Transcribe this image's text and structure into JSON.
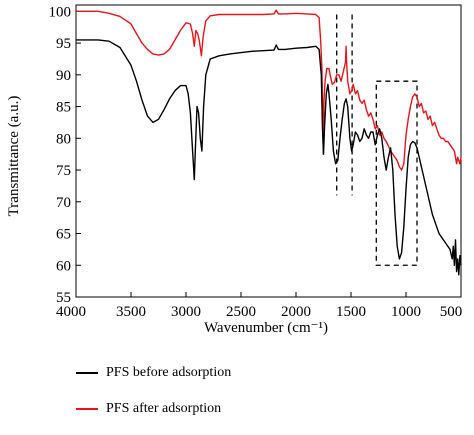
{
  "chart_data": {
    "type": "line",
    "title": "",
    "xlabel": "Wavenumber (cm⁻¹)",
    "ylabel": "Transmittance (a.u.)",
    "xlim": [
      4000,
      500
    ],
    "ylim": [
      55,
      101
    ],
    "x_ticks": [
      "4000",
      "3500",
      "3000",
      "2500",
      "2000",
      "1500",
      "1000",
      "500"
    ],
    "y_ticks": [
      "55",
      "60",
      "65",
      "70",
      "75",
      "80",
      "85",
      "90",
      "95",
      "100"
    ],
    "grid": false,
    "legend_position": "bottom",
    "series": [
      {
        "name": "PFS before adsorption",
        "color": "#000000",
        "points": [
          [
            4000,
            95.5
          ],
          [
            3800,
            95.5
          ],
          [
            3700,
            95.3
          ],
          [
            3600,
            94.3
          ],
          [
            3500,
            91.5
          ],
          [
            3450,
            89
          ],
          [
            3400,
            86
          ],
          [
            3350,
            83.5
          ],
          [
            3300,
            82.5
          ],
          [
            3250,
            83
          ],
          [
            3200,
            84.5
          ],
          [
            3150,
            86.2
          ],
          [
            3100,
            87.5
          ],
          [
            3050,
            88.3
          ],
          [
            3000,
            88.3
          ],
          [
            2980,
            87
          ],
          [
            2960,
            84
          ],
          [
            2940,
            78
          ],
          [
            2925,
            73.5
          ],
          [
            2915,
            78
          ],
          [
            2900,
            85
          ],
          [
            2885,
            84
          ],
          [
            2870,
            80
          ],
          [
            2855,
            78
          ],
          [
            2840,
            85
          ],
          [
            2820,
            90
          ],
          [
            2780,
            92.5
          ],
          [
            2700,
            93
          ],
          [
            2600,
            93.3
          ],
          [
            2500,
            93.5
          ],
          [
            2400,
            93.7
          ],
          [
            2300,
            93.8
          ],
          [
            2200,
            93.9
          ],
          [
            2180,
            94.7
          ],
          [
            2160,
            94
          ],
          [
            2100,
            94
          ],
          [
            2000,
            94.2
          ],
          [
            1900,
            94.3
          ],
          [
            1820,
            94.5
          ],
          [
            1790,
            94
          ],
          [
            1770,
            90
          ],
          [
            1760,
            82
          ],
          [
            1750,
            77.5
          ],
          [
            1740,
            82
          ],
          [
            1725,
            87
          ],
          [
            1710,
            88.5
          ],
          [
            1700,
            87
          ],
          [
            1680,
            83
          ],
          [
            1660,
            78
          ],
          [
            1640,
            76
          ],
          [
            1620,
            76.5
          ],
          [
            1600,
            80
          ],
          [
            1580,
            83
          ],
          [
            1560,
            85.5
          ],
          [
            1545,
            86.2
          ],
          [
            1530,
            85
          ],
          [
            1510,
            80
          ],
          [
            1495,
            78
          ],
          [
            1480,
            79
          ],
          [
            1460,
            81
          ],
          [
            1440,
            80.5
          ],
          [
            1420,
            79.5
          ],
          [
            1400,
            80
          ],
          [
            1380,
            81.5
          ],
          [
            1360,
            80.5
          ],
          [
            1340,
            80
          ],
          [
            1320,
            81
          ],
          [
            1300,
            81
          ],
          [
            1280,
            79
          ],
          [
            1260,
            80.5
          ],
          [
            1240,
            81.5
          ],
          [
            1220,
            80
          ],
          [
            1200,
            77
          ],
          [
            1180,
            75
          ],
          [
            1160,
            77
          ],
          [
            1140,
            78.5
          ],
          [
            1120,
            75
          ],
          [
            1100,
            68
          ],
          [
            1080,
            63
          ],
          [
            1060,
            61
          ],
          [
            1040,
            62
          ],
          [
            1020,
            66
          ],
          [
            1000,
            72
          ],
          [
            980,
            77
          ],
          [
            960,
            79
          ],
          [
            940,
            79.5
          ],
          [
            920,
            79.3
          ],
          [
            900,
            78.5
          ],
          [
            880,
            77
          ],
          [
            860,
            75.5
          ],
          [
            840,
            74
          ],
          [
            820,
            72.5
          ],
          [
            800,
            71
          ],
          [
            780,
            69.5
          ],
          [
            760,
            68
          ],
          [
            740,
            67
          ],
          [
            720,
            66
          ],
          [
            700,
            65
          ],
          [
            680,
            64.5
          ],
          [
            660,
            64
          ],
          [
            640,
            63.5
          ],
          [
            620,
            63
          ],
          [
            600,
            62.5
          ],
          [
            580,
            61
          ],
          [
            570,
            63
          ],
          [
            560,
            60
          ],
          [
            550,
            64
          ],
          [
            540,
            59
          ],
          [
            530,
            61
          ],
          [
            520,
            58.5
          ],
          [
            510,
            61.5
          ],
          [
            500,
            60
          ]
        ]
      },
      {
        "name": "PFS after adsorption",
        "color": "#e8141a",
        "points": [
          [
            4000,
            100
          ],
          [
            3800,
            100
          ],
          [
            3700,
            99.7
          ],
          [
            3600,
            99.2
          ],
          [
            3500,
            98
          ],
          [
            3450,
            96.5
          ],
          [
            3400,
            95
          ],
          [
            3350,
            94
          ],
          [
            3300,
            93.3
          ],
          [
            3250,
            93.1
          ],
          [
            3200,
            93.3
          ],
          [
            3150,
            94
          ],
          [
            3100,
            95.5
          ],
          [
            3050,
            97
          ],
          [
            3000,
            98.2
          ],
          [
            2960,
            98
          ],
          [
            2940,
            96.5
          ],
          [
            2925,
            94.5
          ],
          [
            2910,
            97
          ],
          [
            2895,
            96.5
          ],
          [
            2880,
            95.5
          ],
          [
            2860,
            93
          ],
          [
            2845,
            96
          ],
          [
            2820,
            98.5
          ],
          [
            2780,
            99.3
          ],
          [
            2700,
            99.5
          ],
          [
            2600,
            99.5
          ],
          [
            2500,
            99.5
          ],
          [
            2400,
            99.5
          ],
          [
            2300,
            99.5
          ],
          [
            2200,
            99.6
          ],
          [
            2180,
            100.2
          ],
          [
            2160,
            99.6
          ],
          [
            2100,
            99.6
          ],
          [
            2000,
            99.7
          ],
          [
            1900,
            99.6
          ],
          [
            1820,
            99.5
          ],
          [
            1790,
            99
          ],
          [
            1775,
            95
          ],
          [
            1765,
            91
          ],
          [
            1758,
            85
          ],
          [
            1752,
            77.5
          ],
          [
            1745,
            86
          ],
          [
            1735,
            89
          ],
          [
            1720,
            91
          ],
          [
            1700,
            91
          ],
          [
            1690,
            90
          ],
          [
            1670,
            88.5
          ],
          [
            1650,
            88.8
          ],
          [
            1630,
            90
          ],
          [
            1610,
            90
          ],
          [
            1590,
            89
          ],
          [
            1570,
            90.5
          ],
          [
            1550,
            92
          ],
          [
            1545,
            94.5
          ],
          [
            1540,
            92
          ],
          [
            1530,
            89
          ],
          [
            1510,
            87
          ],
          [
            1495,
            87.5
          ],
          [
            1480,
            88.5
          ],
          [
            1460,
            87
          ],
          [
            1440,
            87.5
          ],
          [
            1420,
            86
          ],
          [
            1400,
            85.5
          ],
          [
            1380,
            86
          ],
          [
            1360,
            84.5
          ],
          [
            1340,
            83.5
          ],
          [
            1320,
            84
          ],
          [
            1300,
            83
          ],
          [
            1280,
            81.5
          ],
          [
            1260,
            82
          ],
          [
            1240,
            80.5
          ],
          [
            1220,
            81
          ],
          [
            1200,
            80
          ],
          [
            1180,
            79.5
          ],
          [
            1160,
            78.8
          ],
          [
            1140,
            78
          ],
          [
            1120,
            77.5
          ],
          [
            1100,
            77
          ],
          [
            1080,
            76.5
          ],
          [
            1060,
            75.5
          ],
          [
            1040,
            75
          ],
          [
            1020,
            76
          ],
          [
            1000,
            80.5
          ],
          [
            980,
            83
          ],
          [
            960,
            85
          ],
          [
            940,
            86.5
          ],
          [
            920,
            87
          ],
          [
            900,
            86.5
          ],
          [
            880,
            85
          ],
          [
            860,
            85.5
          ],
          [
            840,
            84
          ],
          [
            820,
            84.3
          ],
          [
            800,
            83
          ],
          [
            780,
            83.5
          ],
          [
            760,
            82
          ],
          [
            740,
            82.5
          ],
          [
            720,
            81.5
          ],
          [
            700,
            80.5
          ],
          [
            680,
            80
          ],
          [
            660,
            80
          ],
          [
            640,
            79.5
          ],
          [
            620,
            79.5
          ],
          [
            600,
            79
          ],
          [
            580,
            78.5
          ],
          [
            560,
            78
          ],
          [
            540,
            76
          ],
          [
            530,
            77
          ],
          [
            520,
            76.5
          ],
          [
            510,
            76
          ],
          [
            500,
            77
          ]
        ]
      }
    ],
    "annotations": {
      "dashed_vlines": [
        1630,
        1490
      ],
      "dashed_boxes": [
        {
          "x": [
            1270,
            900
          ],
          "y": [
            60,
            89
          ]
        }
      ]
    }
  },
  "legend": {
    "items": [
      {
        "label": "PFS before adsorption",
        "color": "#000000"
      },
      {
        "label": "PFS after adsorption",
        "color": "#e8141a"
      }
    ]
  }
}
